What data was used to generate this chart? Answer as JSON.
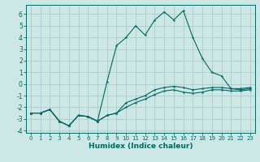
{
  "xlabel": "Humidex (Indice chaleur)",
  "bg_color": "#cde8e4",
  "grid_color": "#aaccca",
  "line_color": "#006666",
  "xlim": [
    -0.5,
    23.5
  ],
  "ylim": [
    -4.2,
    6.8
  ],
  "xticks": [
    0,
    1,
    2,
    3,
    4,
    5,
    6,
    7,
    8,
    9,
    10,
    11,
    12,
    13,
    14,
    15,
    16,
    17,
    18,
    19,
    20,
    21,
    22,
    23
  ],
  "yticks": [
    -4,
    -3,
    -2,
    -1,
    0,
    1,
    2,
    3,
    4,
    5,
    6
  ],
  "x": [
    0,
    1,
    2,
    3,
    4,
    5,
    6,
    7,
    8,
    9,
    10,
    11,
    12,
    13,
    14,
    15,
    16,
    17,
    18,
    19,
    20,
    21,
    22,
    23
  ],
  "series1": [
    -2.5,
    -2.5,
    -2.2,
    -3.2,
    -3.6,
    -2.7,
    -2.8,
    -3.2,
    -2.7,
    -2.5,
    -2.0,
    -1.6,
    -1.3,
    -0.9,
    -0.6,
    -0.5,
    -0.7,
    -0.8,
    -0.7,
    -0.5,
    -0.5,
    -0.6,
    -0.6,
    -0.5
  ],
  "series2": [
    -2.5,
    -2.5,
    -2.2,
    -3.2,
    -3.6,
    -2.7,
    -2.8,
    -3.2,
    0.2,
    3.3,
    4.0,
    5.0,
    4.2,
    5.5,
    6.2,
    5.5,
    6.3,
    4.0,
    2.2,
    1.0,
    0.7,
    -0.4,
    -0.5,
    -0.4
  ],
  "series3": [
    -2.5,
    -2.5,
    -2.2,
    -3.2,
    -3.6,
    -2.7,
    -2.8,
    -3.2,
    -2.7,
    -2.5,
    -1.6,
    -1.3,
    -1.0,
    -0.5,
    -0.3,
    -0.2,
    -0.3,
    -0.5,
    -0.4,
    -0.3,
    -0.3,
    -0.4,
    -0.4,
    -0.3
  ]
}
